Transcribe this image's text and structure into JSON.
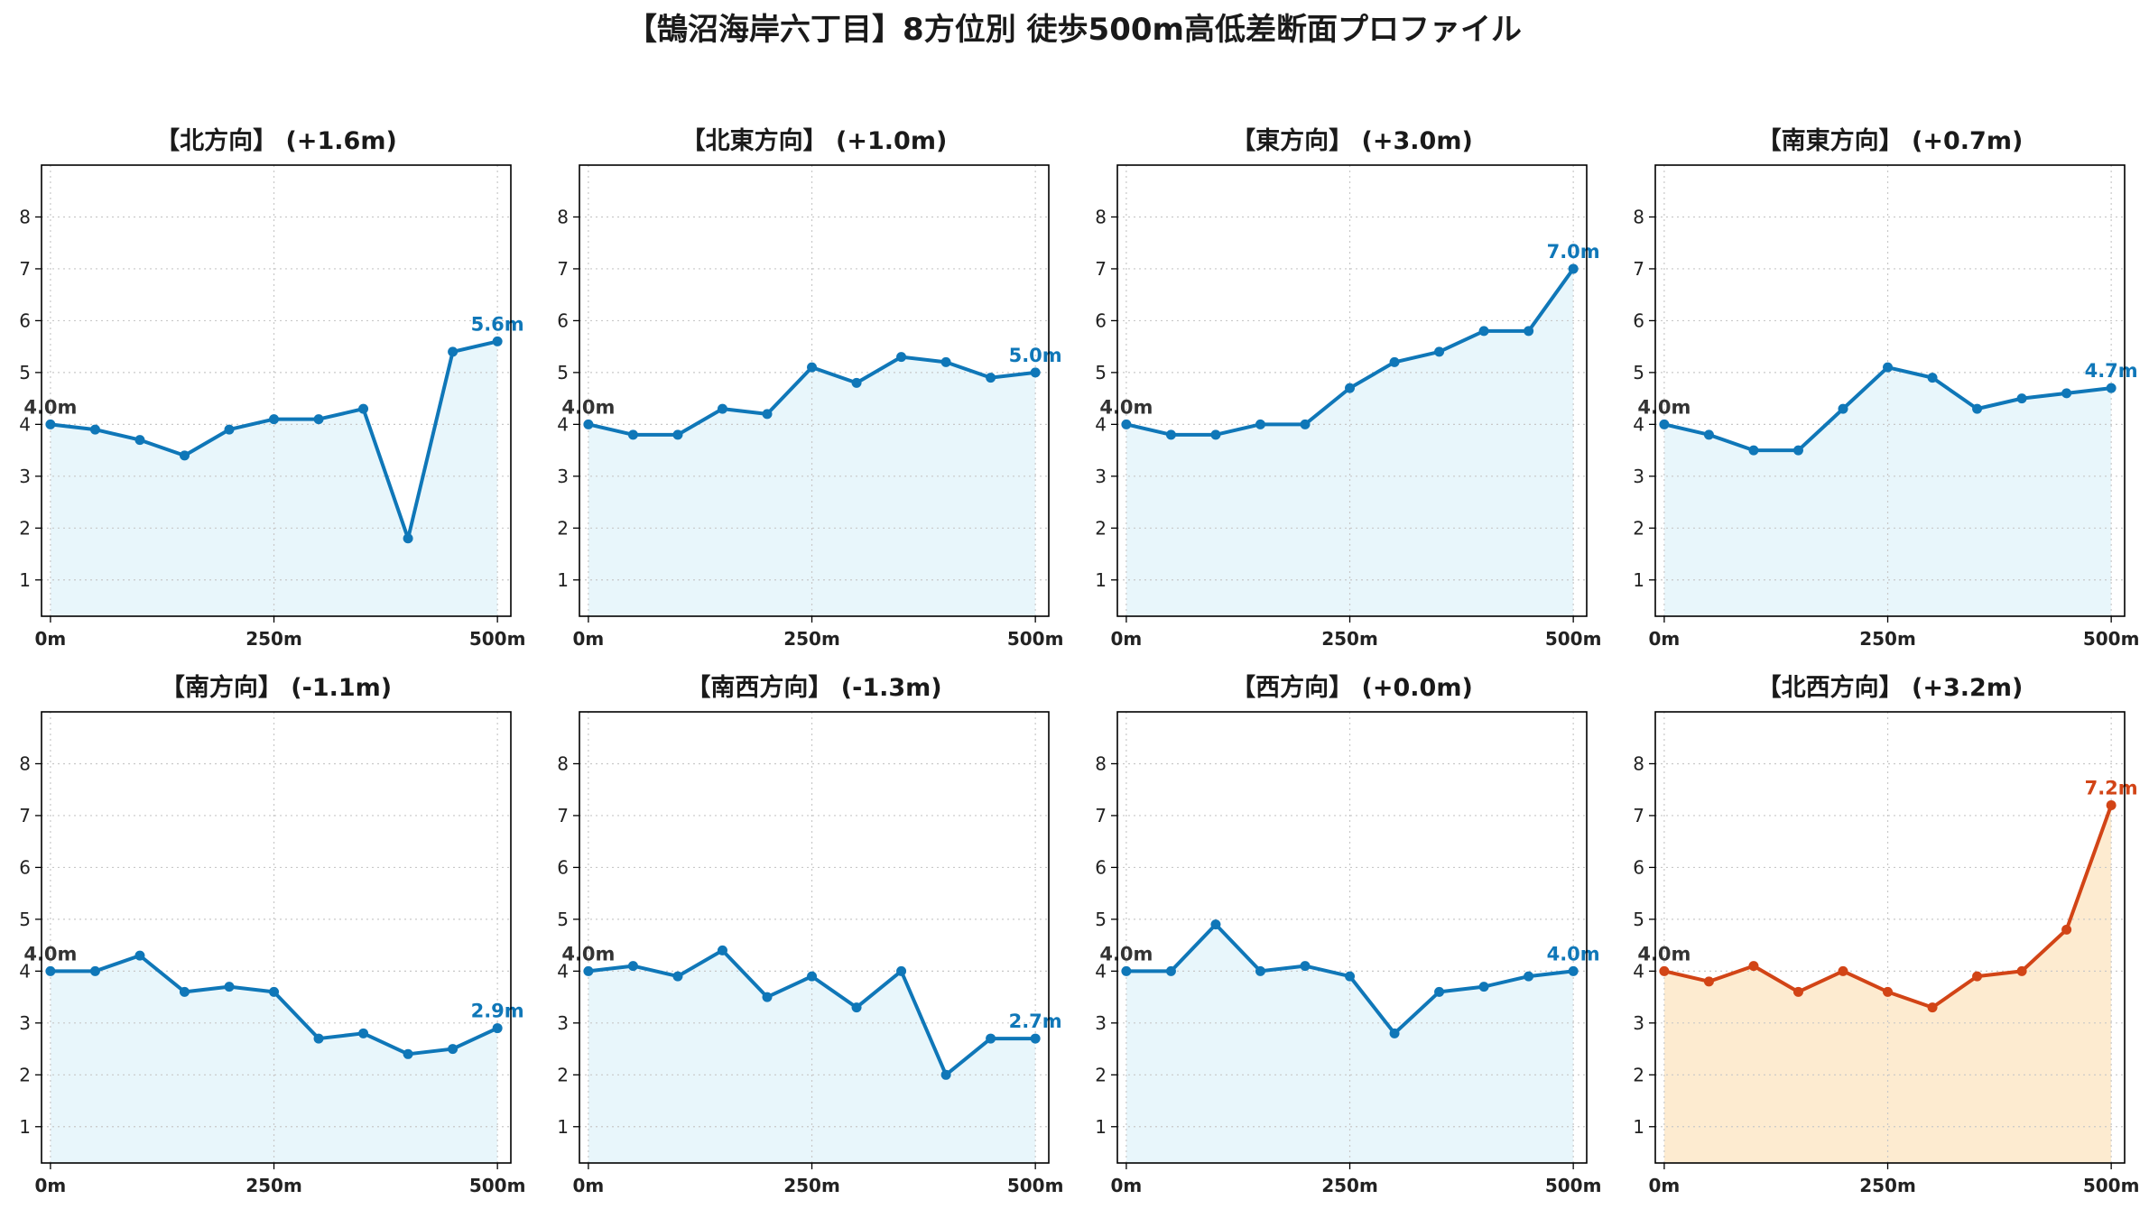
{
  "title": "【鵠沼海岸六丁目】8方位別 徒歩500m高低差断面プロファイル",
  "colors": {
    "normal_line": "#0f77b8",
    "normal_fill": "#e8f6fb",
    "highlight_line": "#d24416",
    "highlight_fill": "#fdebd0",
    "start_label": "#333333",
    "grid": "#c8c8c8"
  },
  "chart_data": [
    {
      "type": "line",
      "title": "【北方向】 (+1.6m)",
      "x_ticks": [
        "0m",
        "250m",
        "500m"
      ],
      "x": [
        0,
        50,
        100,
        150,
        200,
        250,
        300,
        350,
        400,
        450,
        500
      ],
      "xlim": [
        -10,
        515
      ],
      "ylim": [
        0.3,
        9
      ],
      "y_ticks": [
        1,
        2,
        3,
        4,
        5,
        6,
        7,
        8
      ],
      "grid": true,
      "highlight": false,
      "start_label": "4.0m",
      "end_label": "5.6m",
      "values": [
        4.0,
        3.9,
        3.7,
        3.4,
        3.9,
        4.1,
        4.1,
        4.3,
        1.8,
        5.4,
        5.6
      ]
    },
    {
      "type": "line",
      "title": "【北東方向】 (+1.0m)",
      "x_ticks": [
        "0m",
        "250m",
        "500m"
      ],
      "x": [
        0,
        50,
        100,
        150,
        200,
        250,
        300,
        350,
        400,
        450,
        500
      ],
      "xlim": [
        -10,
        515
      ],
      "ylim": [
        0.3,
        9
      ],
      "y_ticks": [
        1,
        2,
        3,
        4,
        5,
        6,
        7,
        8
      ],
      "grid": true,
      "highlight": false,
      "start_label": "4.0m",
      "end_label": "5.0m",
      "values": [
        4.0,
        3.8,
        3.8,
        4.3,
        4.2,
        5.1,
        4.8,
        5.3,
        5.2,
        4.9,
        5.0
      ]
    },
    {
      "type": "line",
      "title": "【東方向】 (+3.0m)",
      "x_ticks": [
        "0m",
        "250m",
        "500m"
      ],
      "x": [
        0,
        50,
        100,
        150,
        200,
        250,
        300,
        350,
        400,
        450,
        500
      ],
      "xlim": [
        -10,
        515
      ],
      "ylim": [
        0.3,
        9
      ],
      "y_ticks": [
        1,
        2,
        3,
        4,
        5,
        6,
        7,
        8
      ],
      "grid": true,
      "highlight": false,
      "start_label": "4.0m",
      "end_label": "7.0m",
      "values": [
        4.0,
        3.8,
        3.8,
        4.0,
        4.0,
        4.7,
        5.2,
        5.4,
        5.8,
        5.8,
        7.0
      ]
    },
    {
      "type": "line",
      "title": "【南東方向】 (+0.7m)",
      "x_ticks": [
        "0m",
        "250m",
        "500m"
      ],
      "x": [
        0,
        50,
        100,
        150,
        200,
        250,
        300,
        350,
        400,
        450,
        500
      ],
      "xlim": [
        -10,
        515
      ],
      "ylim": [
        0.3,
        9
      ],
      "y_ticks": [
        1,
        2,
        3,
        4,
        5,
        6,
        7,
        8
      ],
      "grid": true,
      "highlight": false,
      "start_label": "4.0m",
      "end_label": "4.7m",
      "values": [
        4.0,
        3.8,
        3.5,
        3.5,
        4.3,
        5.1,
        4.9,
        4.3,
        4.5,
        4.6,
        4.7
      ]
    },
    {
      "type": "line",
      "title": "【南方向】 (-1.1m)",
      "x_ticks": [
        "0m",
        "250m",
        "500m"
      ],
      "x": [
        0,
        50,
        100,
        150,
        200,
        250,
        300,
        350,
        400,
        450,
        500
      ],
      "xlim": [
        -10,
        515
      ],
      "ylim": [
        0.3,
        9
      ],
      "y_ticks": [
        1,
        2,
        3,
        4,
        5,
        6,
        7,
        8
      ],
      "grid": true,
      "highlight": false,
      "start_label": "4.0m",
      "end_label": "2.9m",
      "values": [
        4.0,
        4.0,
        4.3,
        3.6,
        3.7,
        3.6,
        2.7,
        2.8,
        2.4,
        2.5,
        2.9
      ]
    },
    {
      "type": "line",
      "title": "【南西方向】 (-1.3m)",
      "x_ticks": [
        "0m",
        "250m",
        "500m"
      ],
      "x": [
        0,
        50,
        100,
        150,
        200,
        250,
        300,
        350,
        400,
        450,
        500
      ],
      "xlim": [
        -10,
        515
      ],
      "ylim": [
        0.3,
        9
      ],
      "y_ticks": [
        1,
        2,
        3,
        4,
        5,
        6,
        7,
        8
      ],
      "grid": true,
      "highlight": false,
      "start_label": "4.0m",
      "end_label": "2.7m",
      "values": [
        4.0,
        4.1,
        3.9,
        4.4,
        3.5,
        3.9,
        3.3,
        4.0,
        2.0,
        2.7,
        2.7
      ]
    },
    {
      "type": "line",
      "title": "【西方向】 (+0.0m)",
      "x_ticks": [
        "0m",
        "250m",
        "500m"
      ],
      "x": [
        0,
        50,
        100,
        150,
        200,
        250,
        300,
        350,
        400,
        450,
        500
      ],
      "xlim": [
        -10,
        515
      ],
      "ylim": [
        0.3,
        9
      ],
      "y_ticks": [
        1,
        2,
        3,
        4,
        5,
        6,
        7,
        8
      ],
      "grid": true,
      "highlight": false,
      "start_label": "4.0m",
      "end_label": "4.0m",
      "values": [
        4.0,
        4.0,
        4.9,
        4.0,
        4.1,
        3.9,
        2.8,
        3.6,
        3.7,
        3.9,
        4.0
      ]
    },
    {
      "type": "line",
      "title": "【北西方向】 (+3.2m)",
      "x_ticks": [
        "0m",
        "250m",
        "500m"
      ],
      "x": [
        0,
        50,
        100,
        150,
        200,
        250,
        300,
        350,
        400,
        450,
        500
      ],
      "xlim": [
        -10,
        515
      ],
      "ylim": [
        0.3,
        9
      ],
      "y_ticks": [
        1,
        2,
        3,
        4,
        5,
        6,
        7,
        8
      ],
      "grid": true,
      "highlight": true,
      "start_label": "4.0m",
      "end_label": "7.2m",
      "values": [
        4.0,
        3.8,
        4.1,
        3.6,
        4.0,
        3.6,
        3.3,
        3.9,
        4.0,
        4.8,
        7.2
      ]
    }
  ]
}
